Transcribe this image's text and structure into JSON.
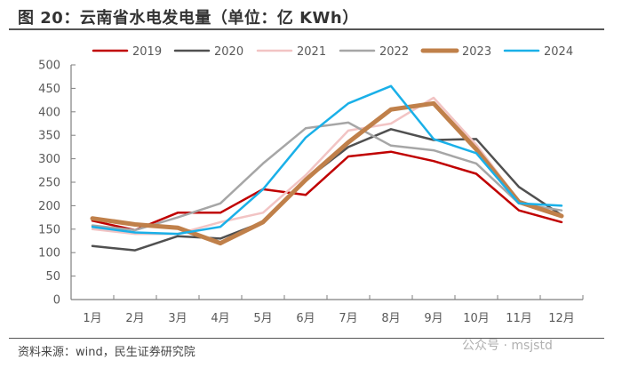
{
  "title": "图 20：云南省水电发电量（单位：亿 KWh）",
  "source": "资料来源：wind，民生证券研究院",
  "watermark": "公众号 · msjstd",
  "chart_data": {
    "type": "line",
    "title": "云南省水电发电量（单位：亿 KWh）",
    "xlabel": "",
    "ylabel": "",
    "ylim": [
      0,
      500
    ],
    "yticks": [
      0,
      50,
      100,
      150,
      200,
      250,
      300,
      350,
      400,
      450,
      500
    ],
    "grid": false,
    "legend": "top",
    "categories": [
      "1月",
      "2月",
      "3月",
      "4月",
      "5月",
      "6月",
      "7月",
      "8月",
      "9月",
      "10月",
      "11月",
      "12月"
    ],
    "series": [
      {
        "name": "2019",
        "color": "#c00000",
        "width": 2.5,
        "values": [
          168,
          148,
          185,
          185,
          235,
          223,
          305,
          315,
          295,
          268,
          190,
          165
        ]
      },
      {
        "name": "2020",
        "color": "#505050",
        "width": 2.5,
        "values": [
          114,
          105,
          135,
          130,
          165,
          255,
          325,
          363,
          340,
          342,
          240,
          180
        ]
      },
      {
        "name": "2021",
        "color": "#f2c4c4",
        "width": 2.5,
        "values": [
          150,
          140,
          140,
          165,
          185,
          265,
          360,
          375,
          430,
          330,
          210,
          180
        ]
      },
      {
        "name": "2022",
        "color": "#a6a6a6",
        "width": 2.5,
        "values": [
          158,
          148,
          175,
          205,
          290,
          365,
          377,
          328,
          318,
          290,
          205,
          190
        ]
      },
      {
        "name": "2023",
        "color": "#c0804a",
        "width": 5,
        "values": [
          173,
          160,
          153,
          120,
          165,
          255,
          335,
          405,
          418,
          320,
          208,
          178
        ]
      },
      {
        "name": "2024",
        "color": "#1ab0e8",
        "width": 2.5,
        "values": [
          155,
          143,
          140,
          155,
          235,
          345,
          418,
          455,
          342,
          312,
          205,
          200
        ]
      }
    ]
  }
}
